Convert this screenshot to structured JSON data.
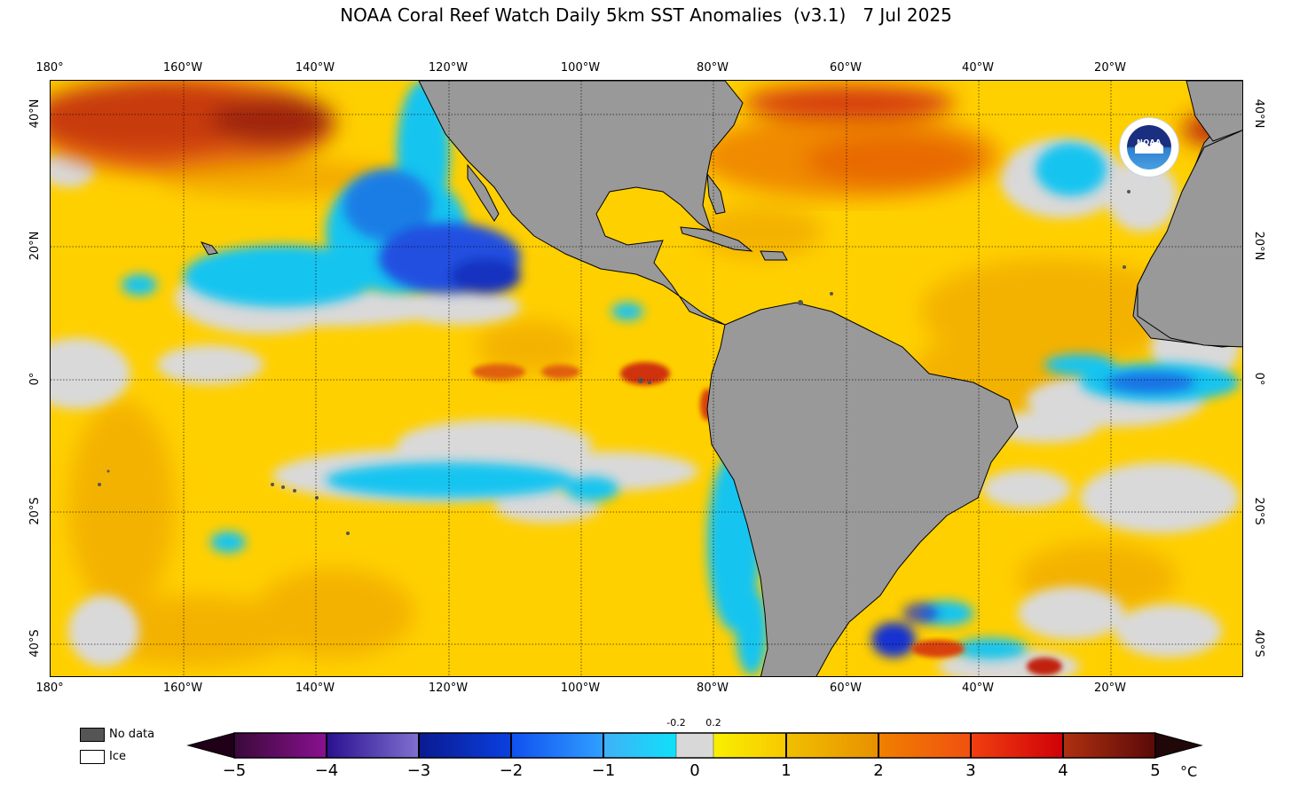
{
  "title": "NOAA Coral Reef Watch Daily 5km SST Anomalies  (v3.1)   7 Jul 2025",
  "lon_ticks": [
    "180°",
    "160°W",
    "140°W",
    "120°W",
    "100°W",
    "80°W",
    "60°W",
    "40°W",
    "20°W"
  ],
  "lat_ticks": [
    "40°N",
    "20°N",
    "0°",
    "20°S",
    "40°S"
  ],
  "logo": {
    "text": "NOAA",
    "icon": "noaa-seagull-emblem"
  },
  "legend": {
    "nodata_label": "No data",
    "ice_label": "Ice",
    "nodata_color": "#555555",
    "ice_color": "#ffffff"
  },
  "colorbar": {
    "labels": [
      "−5",
      "−4",
      "−3",
      "−2",
      "−1",
      "0",
      "1",
      "2",
      "3",
      "4",
      "5"
    ],
    "small_labels": [
      "-0.2",
      "0.2"
    ],
    "unit": "°C"
  },
  "colors": {
    "land": "#999999",
    "neutral": "#d9d9d9",
    "warm": "#ffd400",
    "hot": "#e0400a",
    "cool": "#14c8f0",
    "cold": "#1a40d8"
  }
}
